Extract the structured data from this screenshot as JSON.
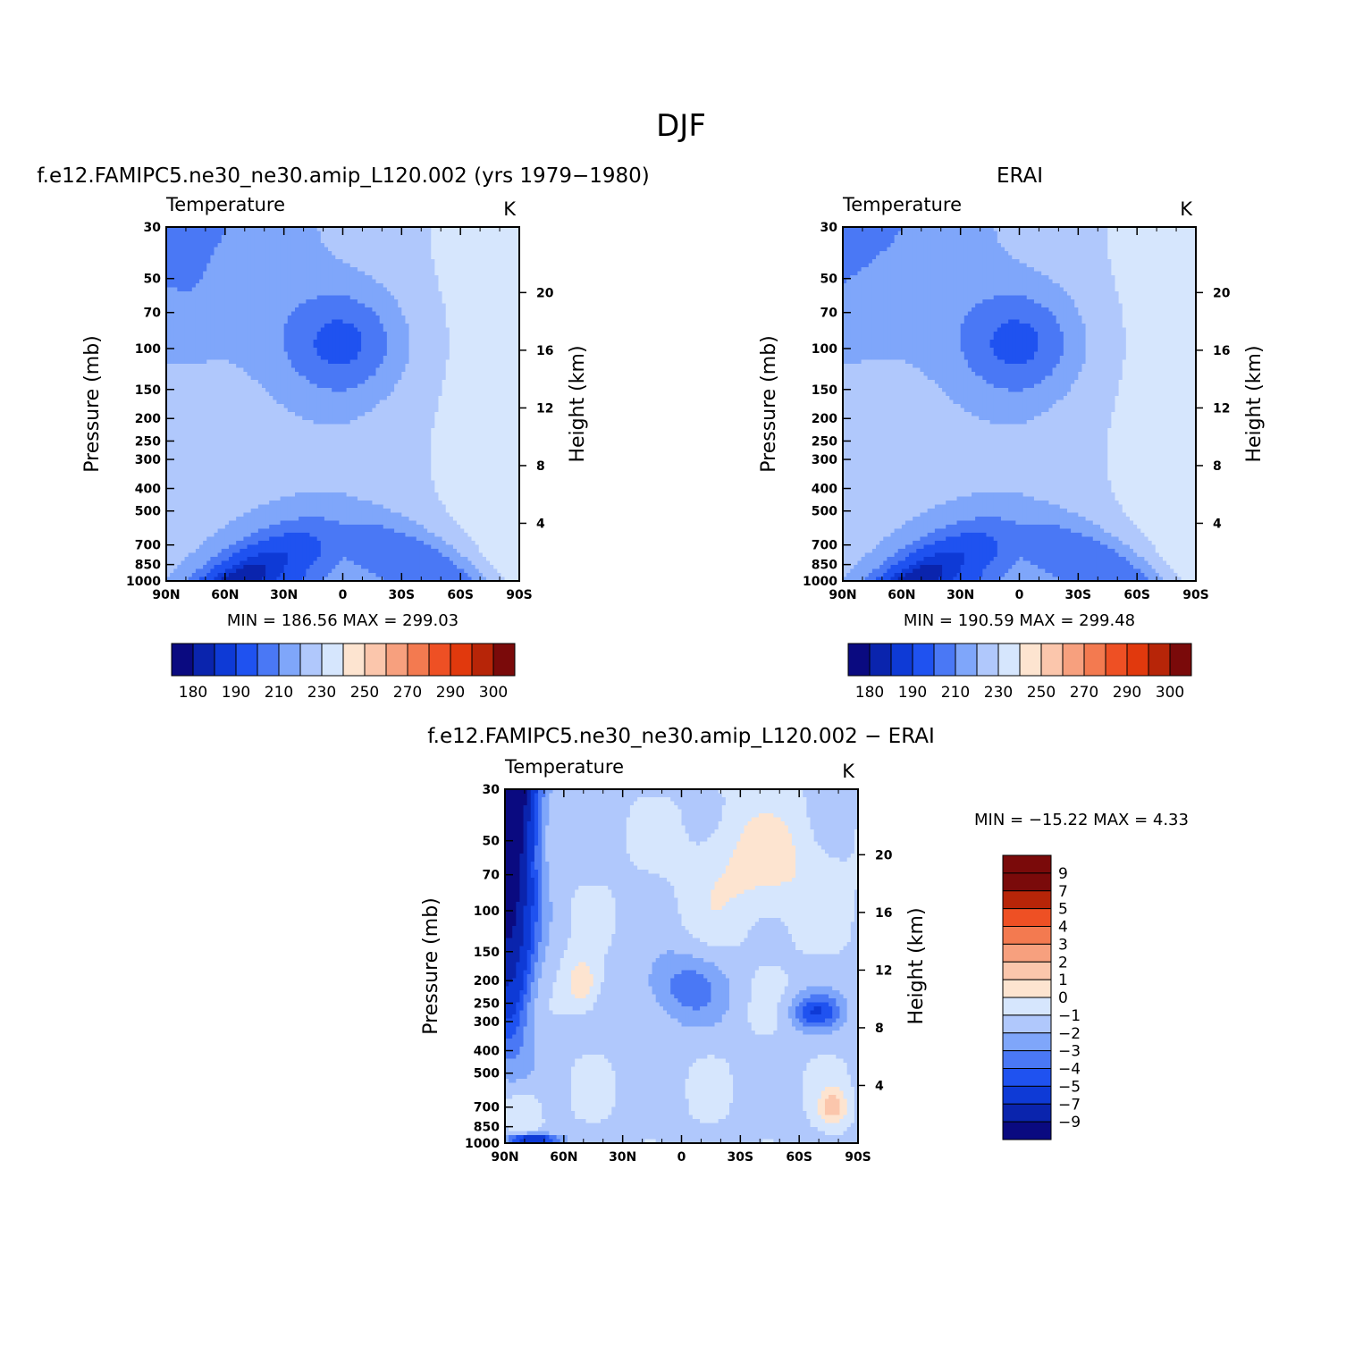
{
  "figure": {
    "title": "DJF",
    "variable": "Temperature",
    "units": "K",
    "colors": {
      "abs_palette": [
        "#0a0a80",
        "#0a24ad",
        "#0e3ad6",
        "#1f52f0",
        "#4a78f5",
        "#7fa6fa",
        "#b0c8fc",
        "#d6e6fd",
        "#fde4d0",
        "#fbc6ac",
        "#f7a07e",
        "#f37a50",
        "#ee5024",
        "#e1390d",
        "#b72508",
        "#7a0a0a"
      ],
      "diff_palette": [
        "#0a0a80",
        "#0a24ad",
        "#0e3ad6",
        "#1f52f0",
        "#4a78f5",
        "#7fa6fa",
        "#b0c8fc",
        "#d6e6fd",
        "#fde4d0",
        "#fbc6ac",
        "#f7a07e",
        "#f37a50",
        "#ee5024",
        "#b72508",
        "#7a0a0a"
      ]
    }
  },
  "chart_data": [
    {
      "type": "heatmap",
      "title": "f.e12.FAMIPC5.ne30_ne30.amip_L120.002 (yrs 1979−1980)",
      "left_title": "Temperature",
      "units": "K",
      "xlabel": "",
      "ylabel": "Pressure (mb)",
      "ylabel_right": "Height (km)",
      "x_ticks": [
        "90N",
        "60N",
        "30N",
        "0",
        "30S",
        "60S",
        "90S"
      ],
      "y_ticks": [
        "30",
        "50",
        "70",
        "100",
        "150",
        "200",
        "250",
        "300",
        "400",
        "500",
        "700",
        "850",
        "1000"
      ],
      "height_ticks": [
        "20",
        "16",
        "12",
        "8",
        "4"
      ],
      "xlim": [
        90,
        -90
      ],
      "ylim": [
        1000,
        30
      ],
      "y_scale": "log",
      "min_label": "MIN = 186.56 MAX = 299.03",
      "min": 186.56,
      "max": 299.03,
      "colorbar_labels": [
        "180",
        "190",
        "210",
        "230",
        "250",
        "270",
        "290",
        "300"
      ]
    },
    {
      "type": "heatmap",
      "title": "ERAI",
      "left_title": "Temperature",
      "units": "K",
      "xlabel": "",
      "ylabel": "Pressure (mb)",
      "ylabel_right": "Height (km)",
      "x_ticks": [
        "90N",
        "60N",
        "30N",
        "0",
        "30S",
        "60S",
        "90S"
      ],
      "y_ticks": [
        "30",
        "50",
        "70",
        "100",
        "150",
        "200",
        "250",
        "300",
        "400",
        "500",
        "700",
        "850",
        "1000"
      ],
      "height_ticks": [
        "20",
        "16",
        "12",
        "8",
        "4"
      ],
      "xlim": [
        90,
        -90
      ],
      "ylim": [
        1000,
        30
      ],
      "y_scale": "log",
      "min_label": "MIN = 190.59 MAX = 299.48",
      "min": 190.59,
      "max": 299.48,
      "colorbar_labels": [
        "180",
        "190",
        "210",
        "230",
        "250",
        "270",
        "290",
        "300"
      ]
    },
    {
      "type": "heatmap",
      "title": "f.e12.FAMIPC5.ne30_ne30.amip_L120.002 − ERAI",
      "left_title": "Temperature",
      "units": "K",
      "xlabel": "",
      "ylabel": "Pressure (mb)",
      "ylabel_right": "Height (km)",
      "x_ticks": [
        "90N",
        "60N",
        "30N",
        "0",
        "30S",
        "60S",
        "90S"
      ],
      "y_ticks": [
        "30",
        "50",
        "70",
        "100",
        "150",
        "200",
        "250",
        "300",
        "400",
        "500",
        "700",
        "850",
        "1000"
      ],
      "height_ticks": [
        "20",
        "16",
        "12",
        "8",
        "4"
      ],
      "xlim": [
        90,
        -90
      ],
      "ylim": [
        1000,
        30
      ],
      "y_scale": "log",
      "min_label": "MIN = −15.22 MAX = 4.33",
      "min": -15.22,
      "max": 4.33,
      "colorbar_labels": [
        "9",
        "7",
        "5",
        "4",
        "3",
        "2",
        "1",
        "0",
        "−1",
        "−2",
        "−3",
        "−4",
        "−5",
        "−7",
        "−9"
      ]
    }
  ]
}
